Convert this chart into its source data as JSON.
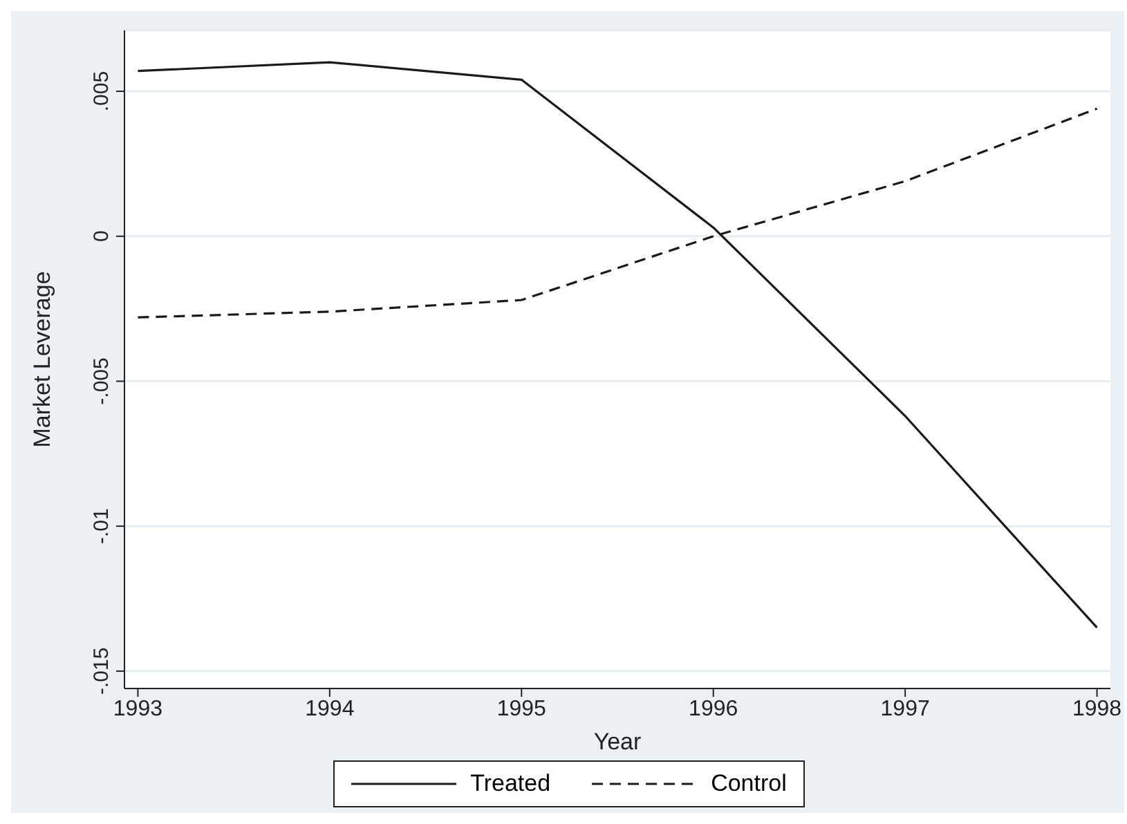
{
  "chart_data": {
    "type": "line",
    "xlabel": "Year",
    "ylabel": "Market Leverage",
    "x": [
      1993,
      1994,
      1995,
      1996,
      1997,
      1998
    ],
    "series": [
      {
        "name": "Treated",
        "color": "#1a1a1a",
        "line_style": "solid",
        "values": [
          0.0057,
          0.006,
          0.0054,
          0.0003,
          -0.0062,
          -0.0135
        ]
      },
      {
        "name": "Control",
        "color": "#1a1a1a",
        "line_style": "dashed",
        "values": [
          -0.0028,
          -0.0026,
          -0.0022,
          0.0,
          0.0019,
          0.0044
        ]
      }
    ],
    "xlim": [
      1992.93,
      1998.07
    ],
    "ylim": [
      -0.0156,
      0.0071
    ],
    "xticks": [
      1993,
      1994,
      1995,
      1996,
      1997,
      1998
    ],
    "yticks": [
      {
        "value": -0.015,
        "label": "-.015"
      },
      {
        "value": -0.01,
        "label": "-.01"
      },
      {
        "value": -0.005,
        "label": "-.005"
      },
      {
        "value": 0,
        "label": "0"
      },
      {
        "value": 0.005,
        "label": ".005"
      }
    ],
    "grid": "y",
    "legend": "bottom",
    "marker": "none"
  }
}
